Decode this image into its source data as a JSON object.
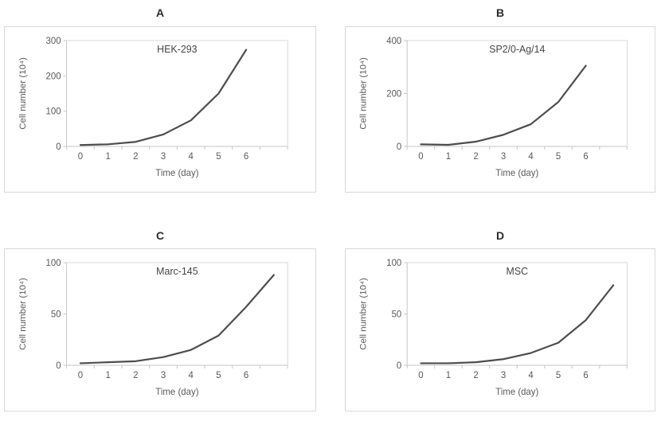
{
  "colors": {
    "curve": "#4d4d4d",
    "axis": "#c6c6c6",
    "plot_border": "#d9d9d9",
    "tick_label": "#595959",
    "axis_title": "#595959",
    "series_title": "#454545",
    "panel_letter": "#2b2b2b",
    "background": "#ffffff"
  },
  "chart_data": [
    {
      "type": "line",
      "panel_label": "A",
      "title": "HEK-293",
      "xlabel": "Time (day)",
      "ylabel": "Cell number (10⁴)",
      "categories": [
        "0",
        "1",
        "2",
        "3",
        "4",
        "5",
        "6",
        ""
      ],
      "x": [
        0,
        1,
        2,
        3,
        4,
        5,
        6
      ],
      "values": [
        4,
        6,
        13,
        34,
        74,
        150,
        274
      ],
      "yticks": [
        0,
        100,
        200,
        300
      ],
      "ylim": [
        0,
        300
      ],
      "grid": false,
      "legend": false
    },
    {
      "type": "line",
      "panel_label": "B",
      "title": "SP2/0-Ag/14",
      "xlabel": "Time (day)",
      "ylabel": "Cell number (10⁴)",
      "categories": [
        "0",
        "1",
        "2",
        "3",
        "4",
        "5",
        "6",
        ""
      ],
      "x": [
        0,
        1,
        2,
        3,
        4,
        5,
        6
      ],
      "values": [
        8,
        6,
        18,
        44,
        84,
        168,
        305
      ],
      "yticks": [
        0,
        200,
        400
      ],
      "ylim": [
        0,
        400
      ],
      "grid": false,
      "legend": false
    },
    {
      "type": "line",
      "panel_label": "C",
      "title": "Marc-145",
      "xlabel": "Time (day)",
      "ylabel": "Cell number (10⁴)",
      "categories": [
        "0",
        "1",
        "2",
        "3",
        "4",
        "5",
        "6",
        ""
      ],
      "x": [
        0,
        1,
        2,
        3,
        4,
        5,
        6,
        7
      ],
      "values": [
        2,
        3,
        4,
        8,
        15,
        29,
        57,
        88
      ],
      "yticks": [
        0,
        50,
        100
      ],
      "ylim": [
        0,
        100
      ],
      "grid": false,
      "legend": false
    },
    {
      "type": "line",
      "panel_label": "D",
      "title": "MSC",
      "xlabel": "Time (day)",
      "ylabel": "Cell number (10⁴)",
      "categories": [
        "0",
        "1",
        "2",
        "3",
        "4",
        "5",
        "6",
        ""
      ],
      "x": [
        0,
        1,
        2,
        3,
        4,
        5,
        6,
        7
      ],
      "values": [
        2,
        2,
        3,
        6,
        12,
        22,
        44,
        78
      ],
      "yticks": [
        0,
        50,
        100
      ],
      "ylim": [
        0,
        100
      ],
      "grid": false,
      "legend": false
    }
  ]
}
